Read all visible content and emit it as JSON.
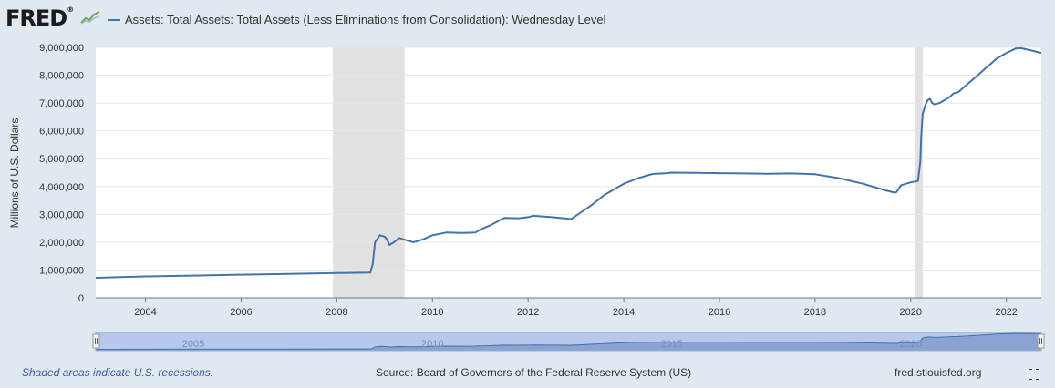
{
  "header": {
    "logo_text": "FRED",
    "logo_reg": "®",
    "legend_label": "Assets: Total Assets: Total Assets (Less Eliminations from Consolidation): Wednesday Level"
  },
  "footer": {
    "recession_note": "Shaded areas indicate U.S. recessions.",
    "source": "Source: Board of Governors of the Federal Reserve System (US)",
    "site": "fred.stlouisfed.org"
  },
  "colors": {
    "series": "#4572a7",
    "recession": "#e1e1e1",
    "navigator_fill": "#a9bbdf"
  },
  "icons": {
    "logo": "line-chart-icon",
    "fullscreen": "fullscreen-icon"
  },
  "chart_data": {
    "type": "line",
    "ylabel": "Millions of U.S. Dollars",
    "xlim": [
      2002.96,
      2022.73
    ],
    "ylim": [
      0,
      9000000
    ],
    "y_ticks": [
      0,
      1000000,
      2000000,
      3000000,
      4000000,
      5000000,
      6000000,
      7000000,
      8000000,
      9000000
    ],
    "y_tick_labels": [
      "0",
      "1,000,000",
      "2,000,000",
      "3,000,000",
      "4,000,000",
      "5,000,000",
      "6,000,000",
      "7,000,000",
      "8,000,000",
      "9,000,000"
    ],
    "x_ticks": [
      2004,
      2006,
      2008,
      2010,
      2012,
      2014,
      2016,
      2018,
      2020,
      2022
    ],
    "x_tick_labels": [
      "2004",
      "2006",
      "2008",
      "2010",
      "2012",
      "2014",
      "2016",
      "2018",
      "2020",
      "2022"
    ],
    "navigator_ticks": [
      2005,
      2010,
      2015,
      2020
    ],
    "navigator_tick_labels": [
      "2005",
      "2010",
      "2015",
      "2020"
    ],
    "grid": true,
    "recessions": [
      [
        2007.92,
        2009.42
      ],
      [
        2020.08,
        2020.25
      ]
    ],
    "series": [
      {
        "x": [
          2002.96,
          2004.0,
          2005.0,
          2006.0,
          2007.0,
          2008.0,
          2008.7,
          2008.75,
          2008.8,
          2008.9,
          2009.0,
          2009.05,
          2009.1,
          2009.2,
          2009.3,
          2009.4,
          2009.5,
          2009.6,
          2009.7,
          2009.8,
          2010.0,
          2010.3,
          2010.6,
          2010.9,
          2011.0,
          2011.2,
          2011.5,
          2011.8,
          2012.0,
          2012.1,
          2012.5,
          2012.9,
          2013.0,
          2013.3,
          2013.6,
          2014.0,
          2014.3,
          2014.6,
          2014.9,
          2015.0,
          2015.5,
          2016.0,
          2016.5,
          2017.0,
          2017.5,
          2018.0,
          2018.5,
          2019.0,
          2019.5,
          2019.67,
          2019.7,
          2019.8,
          2020.0,
          2020.15,
          2020.2,
          2020.22,
          2020.25,
          2020.3,
          2020.35,
          2020.4,
          2020.45,
          2020.5,
          2020.6,
          2020.7,
          2020.8,
          2020.9,
          2021.0,
          2021.2,
          2021.4,
          2021.6,
          2021.8,
          2022.0,
          2022.2,
          2022.3,
          2022.5,
          2022.73
        ],
        "values": [
          720000,
          770000,
          800000,
          830000,
          860000,
          890000,
          910000,
          1200000,
          2000000,
          2250000,
          2200000,
          2100000,
          1900000,
          2000000,
          2150000,
          2100000,
          2050000,
          2000000,
          2050000,
          2100000,
          2250000,
          2350000,
          2330000,
          2350000,
          2450000,
          2600000,
          2870000,
          2860000,
          2900000,
          2950000,
          2900000,
          2830000,
          2950000,
          3300000,
          3700000,
          4100000,
          4300000,
          4450000,
          4480000,
          4500000,
          4490000,
          4480000,
          4470000,
          4460000,
          4470000,
          4440000,
          4300000,
          4100000,
          3850000,
          3780000,
          3800000,
          4050000,
          4150000,
          4200000,
          4900000,
          5800000,
          6600000,
          6900000,
          7100000,
          7150000,
          7000000,
          6950000,
          7000000,
          7100000,
          7200000,
          7350000,
          7400000,
          7700000,
          8000000,
          8300000,
          8600000,
          8800000,
          8960000,
          8970000,
          8900000,
          8800000
        ]
      }
    ]
  }
}
